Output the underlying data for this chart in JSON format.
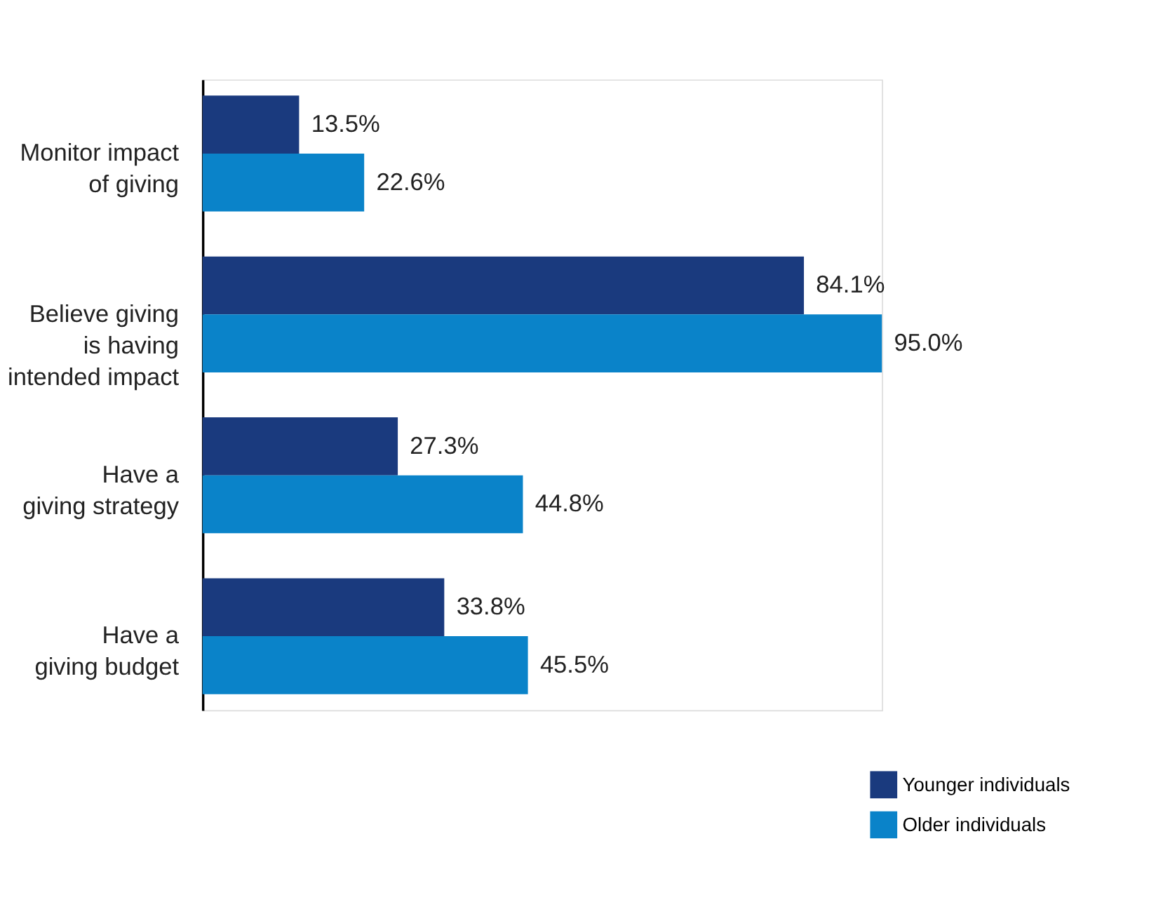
{
  "chart_data": {
    "type": "bar",
    "orientation": "horizontal",
    "categories": [
      "Monitor impact\nof giving",
      "Believe giving\nis having\nintended impact",
      "Have a\ngiving strategy",
      "Have a\ngiving budget"
    ],
    "series": [
      {
        "name": "Younger individuals",
        "color": "#1a3a7e",
        "values": [
          13.5,
          84.1,
          27.3,
          33.8
        ],
        "value_labels": [
          "13.5%",
          "84.1%",
          "27.3%",
          "33.8%"
        ]
      },
      {
        "name": "Older individuals",
        "color": "#0a83c9",
        "values": [
          22.6,
          95.0,
          44.8,
          45.5
        ],
        "value_labels": [
          "22.6%",
          "95.0%",
          "44.8%",
          "45.5%"
        ]
      }
    ],
    "legend": "bottom right",
    "grid": false,
    "tick_labels": "y"
  }
}
